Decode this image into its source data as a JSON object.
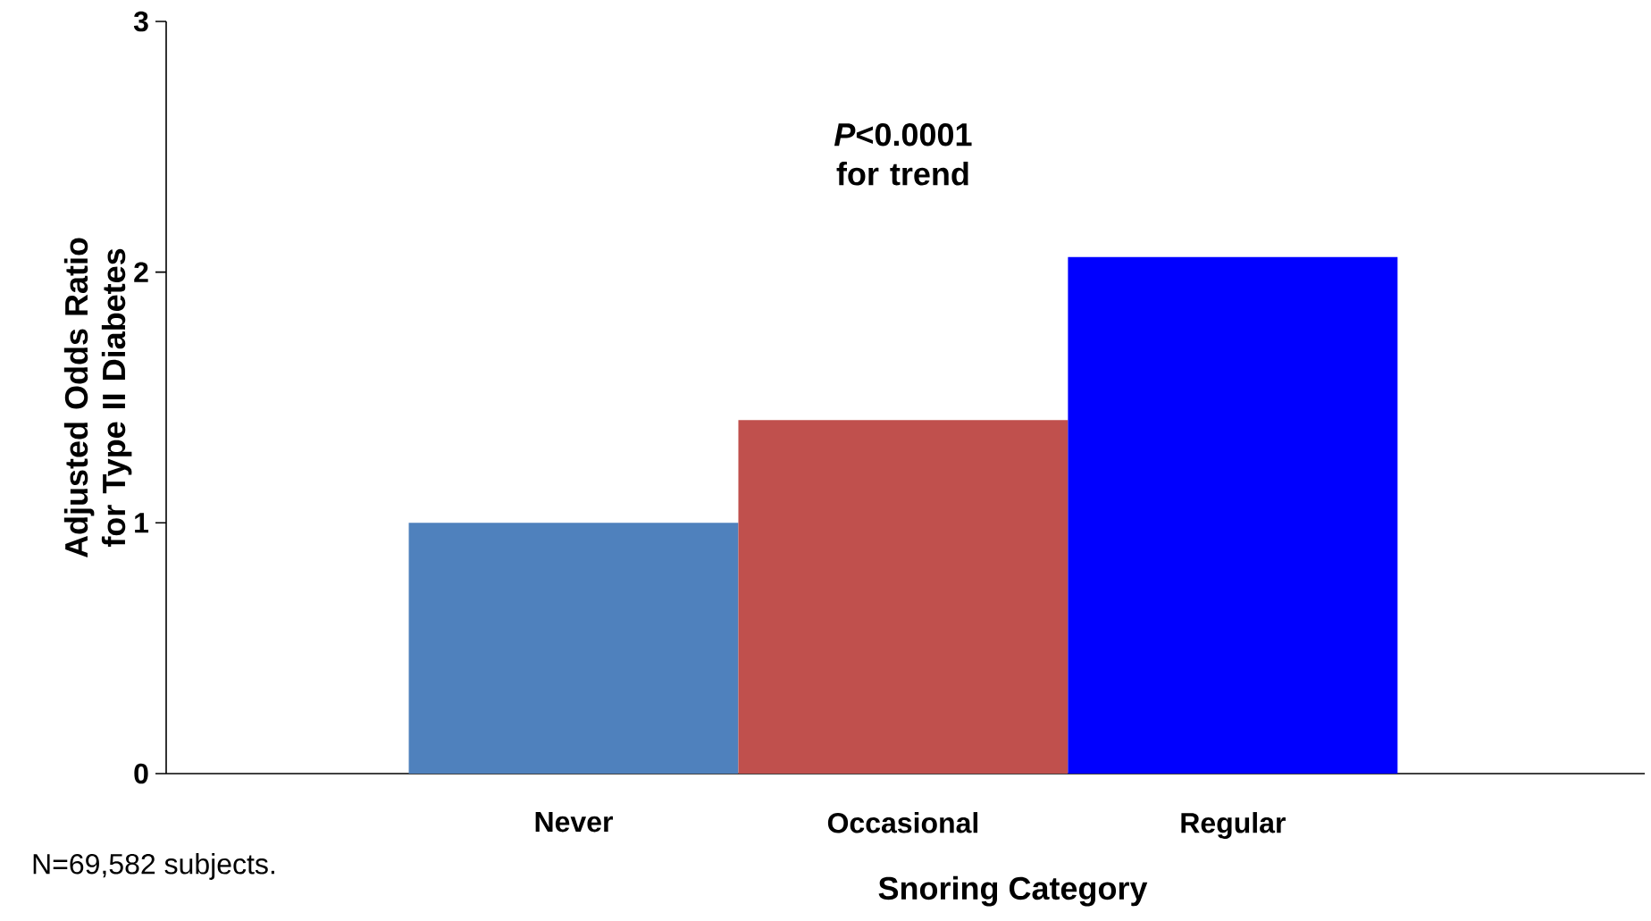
{
  "chart_data": {
    "type": "bar",
    "xlabel": "Snoring Category",
    "ylabel": "Adjusted Odds Ratio for Type II Diabetes",
    "categories": [
      "Never",
      "Occasional",
      "Regular"
    ],
    "values": [
      1.0,
      1.41,
      2.06
    ],
    "colors": [
      "#4f81bd",
      "#c0504d",
      "#0000ff"
    ],
    "ylim": [
      0,
      3
    ],
    "yticks": [
      0,
      1,
      2,
      3
    ],
    "annotations": [
      "*P*<0.0001 for trend",
      "N=69,582 subjects."
    ]
  }
}
